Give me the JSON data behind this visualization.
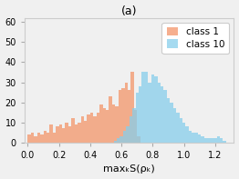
{
  "title": "(a)",
  "xlabel": "maxₖS(ρₖ)",
  "ylabel": "",
  "xlim": [
    -0.02,
    1.32
  ],
  "ylim": [
    0,
    62
  ],
  "yticks": [
    0,
    10,
    20,
    30,
    40,
    50,
    60
  ],
  "xticks": [
    0.0,
    0.2,
    0.4,
    0.6,
    0.8,
    1.0,
    1.2
  ],
  "color1": "#F4956A",
  "color2": "#87CEEB",
  "alpha1": 0.75,
  "alpha2": 0.75,
  "label1": "class 1",
  "label2": "class 10",
  "n_bins": 60,
  "seed": 42,
  "background_color": "#f0f0f0",
  "title_fontsize": 9,
  "label_fontsize": 8,
  "tick_fontsize": 7,
  "legend_fontsize": 7.5,
  "class1_bins": [
    0.0,
    0.02,
    0.04,
    0.06,
    0.08,
    0.1,
    0.12,
    0.14,
    0.16,
    0.18,
    0.2,
    0.22,
    0.24,
    0.26,
    0.28,
    0.3,
    0.32,
    0.34,
    0.36,
    0.38,
    0.4,
    0.42,
    0.44,
    0.46,
    0.48,
    0.5,
    0.52,
    0.54,
    0.56,
    0.58,
    0.6,
    0.62,
    0.64,
    0.66,
    0.68,
    0.7
  ],
  "class1_heights": [
    4,
    5,
    3,
    5,
    4,
    6,
    5,
    9,
    5,
    8,
    9,
    7,
    10,
    8,
    12,
    9,
    10,
    13,
    11,
    14,
    15,
    13,
    15,
    19,
    17,
    16,
    23,
    19,
    18,
    26,
    27,
    30,
    26,
    35,
    16,
    3
  ],
  "class10_bins": [
    0.55,
    0.57,
    0.59,
    0.61,
    0.63,
    0.65,
    0.67,
    0.69,
    0.71,
    0.73,
    0.75,
    0.77,
    0.79,
    0.81,
    0.83,
    0.85,
    0.87,
    0.89,
    0.91,
    0.93,
    0.95,
    0.97,
    0.99,
    1.01,
    1.03,
    1.05,
    1.07,
    1.09,
    1.11,
    1.13,
    1.15,
    1.17,
    1.19,
    1.21,
    1.23,
    1.25
  ],
  "class10_heights": [
    1,
    2,
    3,
    6,
    8,
    13,
    17,
    25,
    28,
    35,
    35,
    30,
    34,
    33,
    30,
    28,
    26,
    22,
    20,
    17,
    15,
    12,
    10,
    8,
    6,
    5,
    5,
    4,
    3,
    2,
    2,
    2,
    2,
    3,
    2,
    1
  ]
}
